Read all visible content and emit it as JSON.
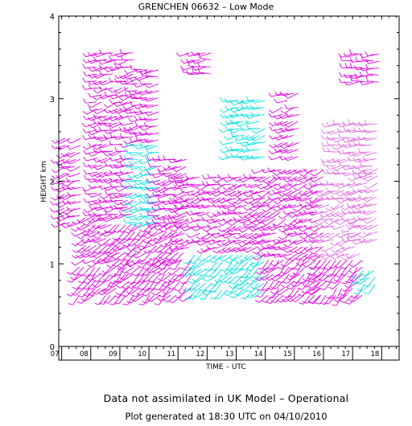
{
  "chart_data": {
    "type": "wind-barb profile",
    "title": "GRENCHEN 06632 – Low Mode",
    "xlabel": "TIME – UTC",
    "ylabel": "HEIGHT km",
    "x_ticks": [
      "07",
      "08",
      "09",
      "10",
      "11",
      "12",
      "13",
      "14",
      "15",
      "16",
      "17",
      "18"
    ],
    "y_ticks": [
      "0",
      "1",
      "2",
      "3",
      "4"
    ],
    "xlim": [
      6.9,
      18.6
    ],
    "ylim": [
      0,
      4
    ],
    "colors": {
      "primary": "#e000e0",
      "secondary": "#e070e0",
      "highlight": "#00e0e0"
    },
    "regions": [
      {
        "t0": 7.6,
        "t1": 9.3,
        "h0": 0.62,
        "h1": 1.0,
        "color": "primary",
        "dir": 225
      },
      {
        "t0": 9.3,
        "t1": 11.6,
        "h0": 0.62,
        "h1": 1.05,
        "color": "primary",
        "dir": 225
      },
      {
        "t0": 11.6,
        "t1": 14.1,
        "h0": 0.68,
        "h1": 1.18,
        "color": "highlight",
        "dir": 230
      },
      {
        "t0": 14.1,
        "t1": 15.9,
        "h0": 0.62,
        "h1": 1.1,
        "color": "primary",
        "dir": 225
      },
      {
        "t0": 15.9,
        "t1": 17.4,
        "h0": 0.62,
        "h1": 1.12,
        "color": "primary",
        "dir": 220
      },
      {
        "t0": 17.4,
        "t1": 17.9,
        "h0": 0.75,
        "h1": 1.0,
        "color": "highlight",
        "dir": 225
      },
      {
        "t0": 7.8,
        "t1": 9.0,
        "h0": 1.05,
        "h1": 1.6,
        "color": "primary",
        "dir": 240
      },
      {
        "t0": 9.0,
        "t1": 11.2,
        "h0": 1.05,
        "h1": 1.5,
        "color": "primary",
        "dir": 235
      },
      {
        "t0": 11.2,
        "t1": 14.0,
        "h0": 1.2,
        "h1": 2.1,
        "color": "primary",
        "dir": 250
      },
      {
        "t0": 14.0,
        "t1": 16.0,
        "h0": 1.12,
        "h1": 2.2,
        "color": "primary",
        "dir": 245
      },
      {
        "t0": 16.0,
        "t1": 17.3,
        "h0": 1.12,
        "h1": 2.0,
        "color": "secondary",
        "dir": 250
      },
      {
        "t0": 17.3,
        "t1": 17.9,
        "h0": 1.3,
        "h1": 2.2,
        "color": "secondary",
        "dir": 250
      },
      {
        "t0": 8.2,
        "t1": 9.6,
        "h0": 1.6,
        "h1": 3.6,
        "color": "primary",
        "dir": 255
      },
      {
        "t0": 9.6,
        "t1": 10.4,
        "h0": 1.5,
        "h1": 2.5,
        "color": "highlight",
        "dir": 255
      },
      {
        "t0": 9.6,
        "t1": 10.4,
        "h0": 2.5,
        "h1": 3.4,
        "color": "primary",
        "dir": 260
      },
      {
        "t0": 10.4,
        "t1": 11.3,
        "h0": 1.5,
        "h1": 2.3,
        "color": "primary",
        "dir": 255
      },
      {
        "t0": 11.4,
        "t1": 12.2,
        "h0": 3.3,
        "h1": 3.6,
        "color": "primary",
        "dir": 265
      },
      {
        "t0": 12.9,
        "t1": 14.1,
        "h0": 2.3,
        "h1": 3.0,
        "color": "highlight",
        "dir": 255
      },
      {
        "t0": 14.6,
        "t1": 15.2,
        "h0": 2.3,
        "h1": 3.1,
        "color": "primary",
        "dir": 250
      },
      {
        "t0": 16.4,
        "t1": 17.9,
        "h0": 2.1,
        "h1": 2.7,
        "color": "secondary",
        "dir": 260
      },
      {
        "t0": 17.0,
        "t1": 17.9,
        "h0": 3.2,
        "h1": 3.6,
        "color": "primary",
        "dir": 265
      },
      {
        "t0": 7.1,
        "t1": 7.7,
        "h0": 1.5,
        "h1": 2.6,
        "color": "primary",
        "dir": 250
      }
    ]
  },
  "footer": {
    "line1": "Data not assimilated in UK Model – Operational",
    "line2": "Plot generated at 18:30 UTC on 04/10/2010"
  }
}
